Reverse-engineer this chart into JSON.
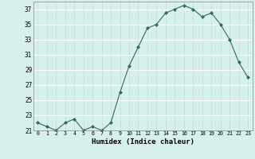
{
  "x": [
    0,
    1,
    2,
    3,
    4,
    5,
    6,
    7,
    8,
    9,
    10,
    11,
    12,
    13,
    14,
    15,
    16,
    17,
    18,
    19,
    20,
    21,
    22,
    23
  ],
  "y": [
    22.0,
    21.5,
    21.0,
    22.0,
    22.5,
    21.0,
    21.5,
    21.0,
    22.0,
    26.0,
    29.5,
    32.0,
    34.5,
    35.0,
    36.5,
    37.0,
    37.5,
    37.0,
    36.0,
    36.5,
    35.0,
    33.0,
    30.0,
    28.0
  ],
  "xlabel": "Humidex (Indice chaleur)",
  "ylim": [
    21,
    38
  ],
  "xlim": [
    -0.5,
    23.5
  ],
  "yticks": [
    21,
    23,
    25,
    27,
    29,
    31,
    33,
    35,
    37
  ],
  "xtick_labels": [
    "0",
    "1",
    "2",
    "3",
    "4",
    "5",
    "6",
    "7",
    "8",
    "9",
    "10",
    "11",
    "12",
    "13",
    "14",
    "15",
    "16",
    "17",
    "18",
    "19",
    "20",
    "21",
    "22",
    "23"
  ],
  "line_color": "#2e6b5e",
  "marker": "D",
  "marker_size": 2.0,
  "bg_color": "#d6f0ec",
  "grid_h_color": "#ffffff",
  "grid_v_color": "#c8d8d4"
}
